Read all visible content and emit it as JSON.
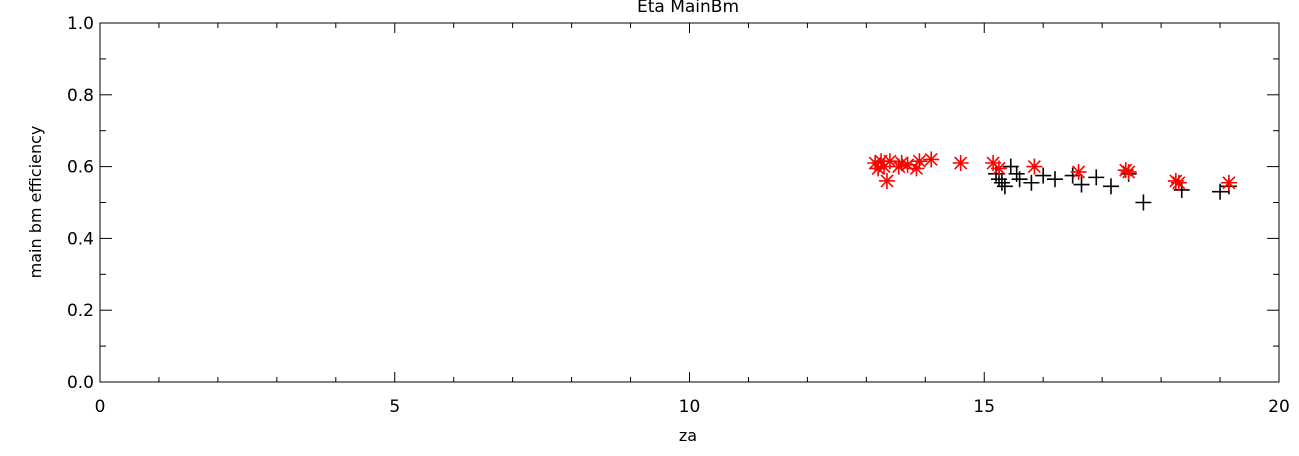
{
  "chart_data": {
    "type": "scatter",
    "title": "Eta  MainBm",
    "xlabel": "za",
    "ylabel": "main  bm  efficiency",
    "xlim": [
      0,
      20
    ],
    "ylim": [
      0.0,
      1.0
    ],
    "x_ticks": [
      0,
      5,
      10,
      15,
      20
    ],
    "x_tick_labels": [
      "0",
      "5",
      "10",
      "15",
      "20"
    ],
    "y_ticks": [
      0.0,
      0.2,
      0.4,
      0.6,
      0.8,
      1.0
    ],
    "y_tick_labels": [
      "0.0",
      "0.2",
      "0.4",
      "0.6",
      "0.8",
      "1.0"
    ],
    "grid": false,
    "series": [
      {
        "marker": "plus",
        "color": "#000000",
        "points": [
          [
            15.2,
            0.58
          ],
          [
            15.25,
            0.565
          ],
          [
            15.3,
            0.555
          ],
          [
            15.35,
            0.545
          ],
          [
            15.45,
            0.6
          ],
          [
            15.55,
            0.58
          ],
          [
            15.6,
            0.565
          ],
          [
            15.8,
            0.555
          ],
          [
            16.0,
            0.575
          ],
          [
            16.2,
            0.565
          ],
          [
            16.5,
            0.575
          ],
          [
            16.65,
            0.55
          ],
          [
            16.9,
            0.57
          ],
          [
            17.15,
            0.545
          ],
          [
            17.45,
            0.58
          ],
          [
            17.7,
            0.5
          ],
          [
            18.35,
            0.535
          ],
          [
            19.0,
            0.53
          ],
          [
            19.15,
            0.545
          ]
        ]
      },
      {
        "marker": "asterisk",
        "color": "#ff0000",
        "points": [
          [
            13.15,
            0.61
          ],
          [
            13.2,
            0.595
          ],
          [
            13.25,
            0.615
          ],
          [
            13.3,
            0.6
          ],
          [
            13.35,
            0.56
          ],
          [
            13.4,
            0.615
          ],
          [
            13.55,
            0.6
          ],
          [
            13.6,
            0.61
          ],
          [
            13.7,
            0.605
          ],
          [
            13.85,
            0.595
          ],
          [
            13.9,
            0.615
          ],
          [
            14.1,
            0.62
          ],
          [
            14.6,
            0.61
          ],
          [
            15.15,
            0.61
          ],
          [
            15.25,
            0.595
          ],
          [
            15.85,
            0.6
          ],
          [
            16.6,
            0.585
          ],
          [
            17.4,
            0.59
          ],
          [
            17.45,
            0.585
          ],
          [
            18.25,
            0.56
          ],
          [
            18.3,
            0.555
          ],
          [
            19.15,
            0.555
          ]
        ]
      }
    ]
  }
}
